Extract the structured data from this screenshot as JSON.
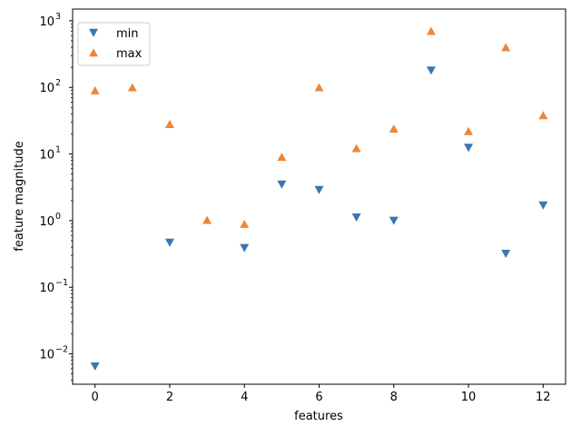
{
  "chart_data": {
    "type": "scatter",
    "xlabel": "features",
    "ylabel": "feature magnitude",
    "xlim": [
      -0.6,
      12.6
    ],
    "ylim": [
      0.0035,
      1500
    ],
    "yscale": "log",
    "grid": false,
    "legend_position": "top-left",
    "x_ticks": [
      0,
      2,
      4,
      6,
      8,
      10,
      12
    ],
    "x_tick_labels": [
      "0",
      "2",
      "4",
      "6",
      "8",
      "10",
      "12"
    ],
    "y_ticks": [
      0.01,
      0.1,
      1,
      10,
      100,
      1000
    ],
    "y_tick_labels": [
      {
        "base": "10",
        "exp": "−2"
      },
      {
        "base": "10",
        "exp": "−1"
      },
      {
        "base": "10",
        "exp": "0"
      },
      {
        "base": "10",
        "exp": "1"
      },
      {
        "base": "10",
        "exp": "2"
      },
      {
        "base": "10",
        "exp": "3"
      }
    ],
    "x": [
      0,
      1,
      2,
      3,
      4,
      5,
      6,
      7,
      8,
      9,
      10,
      11,
      12
    ],
    "series": [
      {
        "name": "min",
        "marker": "triangle-down",
        "color": "#3a76af",
        "points": [
          {
            "x": 0,
            "y": 0.0065
          },
          {
            "x": 2,
            "y": 0.47
          },
          {
            "x": 4,
            "y": 0.39
          },
          {
            "x": 5,
            "y": 3.5
          },
          {
            "x": 6,
            "y": 2.9
          },
          {
            "x": 7,
            "y": 1.12
          },
          {
            "x": 8,
            "y": 1.0
          },
          {
            "x": 9,
            "y": 180
          },
          {
            "x": 10,
            "y": 12.5
          },
          {
            "x": 11,
            "y": 0.32
          },
          {
            "x": 12,
            "y": 1.7
          }
        ]
      },
      {
        "name": "max",
        "marker": "triangle-up",
        "color": "#ef8636",
        "points": [
          {
            "x": 0,
            "y": 90
          },
          {
            "x": 1,
            "y": 100
          },
          {
            "x": 2,
            "y": 28
          },
          {
            "x": 3,
            "y": 1.02
          },
          {
            "x": 4,
            "y": 0.89
          },
          {
            "x": 5,
            "y": 9.0
          },
          {
            "x": 6,
            "y": 100
          },
          {
            "x": 7,
            "y": 12.2
          },
          {
            "x": 8,
            "y": 24
          },
          {
            "x": 9,
            "y": 700
          },
          {
            "x": 10,
            "y": 22
          },
          {
            "x": 11,
            "y": 400
          },
          {
            "x": 12,
            "y": 38
          }
        ]
      }
    ]
  }
}
